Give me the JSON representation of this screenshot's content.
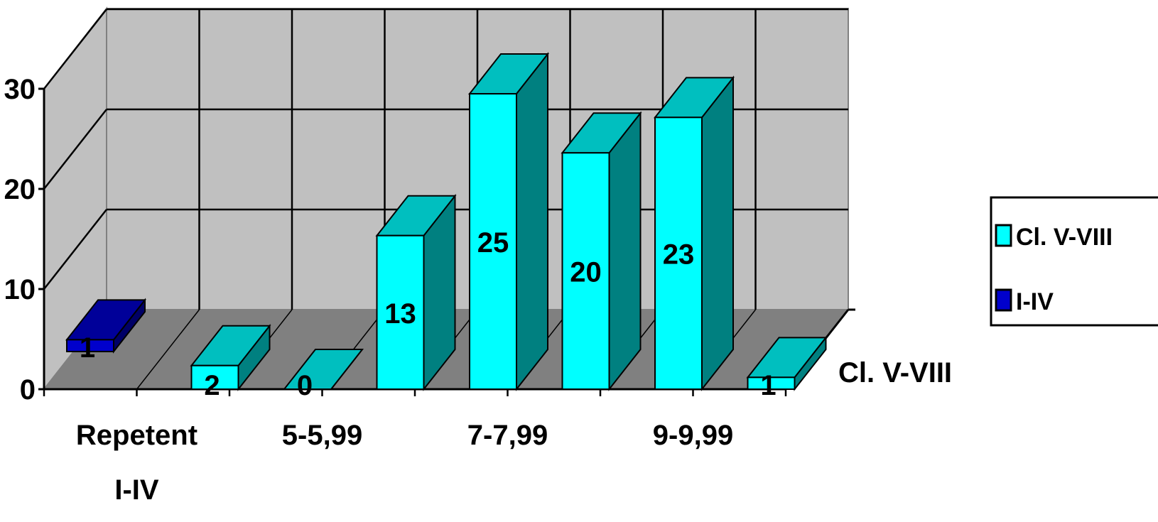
{
  "chart_data": {
    "type": "bar",
    "style": "3d",
    "categories": [
      "Repetent",
      "",
      "5-5,99",
      "",
      "7-7,99",
      "",
      "9-9,99",
      ""
    ],
    "category_sublabels": [
      "I-IV",
      "",
      "",
      "",
      "",
      "",
      "",
      ""
    ],
    "series": [
      {
        "name": "Cl. V-VIII",
        "values": [
          null,
          2,
          0,
          13,
          25,
          20,
          23,
          1
        ],
        "color": "#00ffff"
      },
      {
        "name": "I-IV",
        "values": [
          1,
          null,
          null,
          null,
          null,
          null,
          null,
          null
        ],
        "color": "#0000cc"
      }
    ],
    "y_ticks": [
      0,
      10,
      20,
      30
    ],
    "ylim": [
      0,
      30
    ],
    "depth_axis_label": "Cl. V-VIII",
    "grid": true,
    "legend_position": "right",
    "wall_color": "#c0c0c0",
    "floor_color": "#808080"
  }
}
